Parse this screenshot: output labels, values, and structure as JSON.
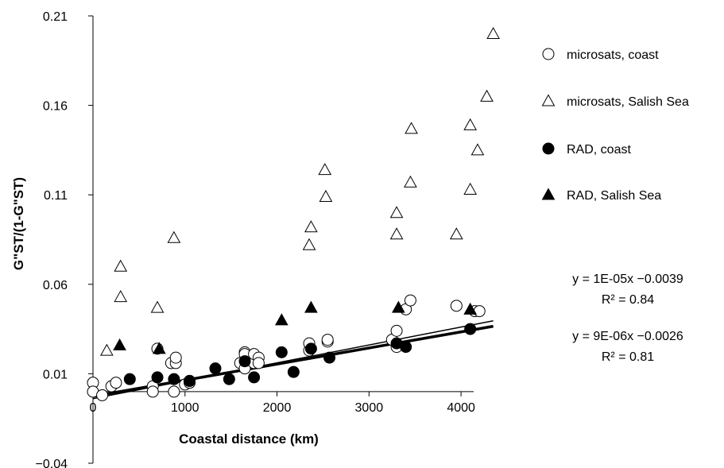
{
  "chart_data": {
    "type": "scatter",
    "title": "",
    "xlabel": "Coastal distance (km)",
    "ylabel": "G\"ST/(1-G\"ST)",
    "xlim": [
      0,
      4500
    ],
    "ylim": [
      -0.04,
      0.21
    ],
    "xticks": [
      "0",
      "1000",
      "2000",
      "3000",
      "4000"
    ],
    "yticks": [
      "0.21",
      "0.16",
      "0.11",
      "0.06",
      "0.01",
      "−0.04"
    ],
    "xtick_values": [
      0,
      1000,
      2000,
      3000,
      4000
    ],
    "ytick_values": [
      0.21,
      0.16,
      0.11,
      0.06,
      0.01,
      -0.04
    ],
    "grid": false,
    "legend_position": "right",
    "series": [
      {
        "name": "microsats, coast",
        "marker": "circle-open",
        "points": [
          [
            0,
            0.005
          ],
          [
            0,
            0.0
          ],
          [
            100,
            -0.002
          ],
          [
            200,
            0.003
          ],
          [
            250,
            0.005
          ],
          [
            650,
            0.003
          ],
          [
            650,
            0.0
          ],
          [
            700,
            0.024
          ],
          [
            850,
            0.016
          ],
          [
            900,
            0.016
          ],
          [
            900,
            0.019
          ],
          [
            880,
            0.0
          ],
          [
            1000,
            0.004
          ],
          [
            1050,
            0.005
          ],
          [
            1050,
            0.006
          ],
          [
            1600,
            0.016
          ],
          [
            1650,
            0.022
          ],
          [
            1650,
            0.021
          ],
          [
            1650,
            0.013
          ],
          [
            1750,
            0.016
          ],
          [
            1750,
            0.021
          ],
          [
            1800,
            0.019
          ],
          [
            1800,
            0.016
          ],
          [
            2350,
            0.023
          ],
          [
            2350,
            0.027
          ],
          [
            2550,
            0.028
          ],
          [
            2550,
            0.029
          ],
          [
            3250,
            0.029
          ],
          [
            3300,
            0.034
          ],
          [
            3300,
            0.025
          ],
          [
            3400,
            0.046
          ],
          [
            3450,
            0.051
          ],
          [
            3950,
            0.048
          ],
          [
            4150,
            0.045
          ],
          [
            4200,
            0.045
          ]
        ]
      },
      {
        "name": "microsats, Salish Sea",
        "marker": "triangle-open",
        "points": [
          [
            150,
            0.023
          ],
          [
            300,
            0.07
          ],
          [
            300,
            0.053
          ],
          [
            700,
            0.047
          ],
          [
            880,
            0.086
          ],
          [
            2350,
            0.082
          ],
          [
            2370,
            0.092
          ],
          [
            2520,
            0.124
          ],
          [
            2530,
            0.109
          ],
          [
            3300,
            0.1
          ],
          [
            3300,
            0.088
          ],
          [
            3450,
            0.117
          ],
          [
            3460,
            0.147
          ],
          [
            3950,
            0.088
          ],
          [
            4100,
            0.149
          ],
          [
            4100,
            0.113
          ],
          [
            4180,
            0.135
          ],
          [
            4280,
            0.165
          ],
          [
            4350,
            0.2
          ]
        ]
      },
      {
        "name": "RAD, coast",
        "marker": "circle-filled",
        "points": [
          [
            400,
            0.007
          ],
          [
            700,
            0.008
          ],
          [
            880,
            0.007
          ],
          [
            1050,
            0.006
          ],
          [
            1330,
            0.013
          ],
          [
            1480,
            0.007
          ],
          [
            1650,
            0.017
          ],
          [
            1750,
            0.008
          ],
          [
            2050,
            0.022
          ],
          [
            2180,
            0.011
          ],
          [
            2370,
            0.024
          ],
          [
            2570,
            0.019
          ],
          [
            3300,
            0.027
          ],
          [
            3400,
            0.025
          ],
          [
            4100,
            0.035
          ]
        ]
      },
      {
        "name": "RAD, Salish Sea",
        "marker": "triangle-filled",
        "points": [
          [
            290,
            0.026
          ],
          [
            720,
            0.024
          ],
          [
            2050,
            0.04
          ],
          [
            2370,
            0.047
          ],
          [
            3320,
            0.047
          ],
          [
            4100,
            0.046
          ]
        ]
      }
    ],
    "trendlines": [
      {
        "slope": 1e-05,
        "intercept": -0.0039,
        "x_range": [
          0,
          4350
        ],
        "weight": "thin"
      },
      {
        "slope": 9e-06,
        "intercept": -0.0026,
        "x_range": [
          0,
          4350
        ],
        "weight": "thick"
      }
    ],
    "annotations": [
      {
        "equation": "y = 1E-05x −0.0039",
        "r2": "R² = 0.84"
      },
      {
        "equation": "y = 9E-06x −0.0026",
        "r2": "R² = 0.81"
      }
    ]
  }
}
